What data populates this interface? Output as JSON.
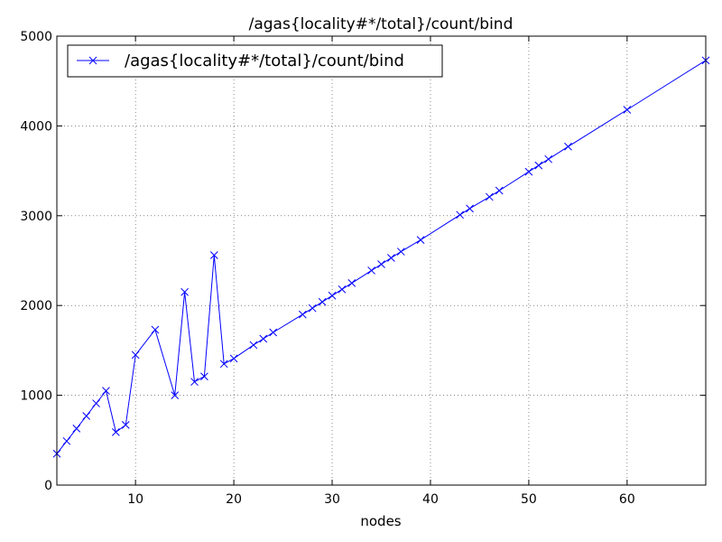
{
  "chart_data": {
    "type": "line",
    "title": "/agas{locality#*/total}/count/bind",
    "xlabel": "nodes",
    "ylabel": "",
    "xlim": [
      2,
      68
    ],
    "ylim": [
      0,
      5000
    ],
    "xticks": [
      10,
      20,
      30,
      40,
      50,
      60
    ],
    "yticks": [
      0,
      1000,
      2000,
      3000,
      4000,
      5000
    ],
    "grid": true,
    "legend_position": "top-left",
    "series": [
      {
        "name": "/agas{locality#*/total}/count/bind",
        "color": "#0000ff",
        "marker": "x",
        "points": [
          [
            2,
            350
          ],
          [
            3,
            490
          ],
          [
            4,
            630
          ],
          [
            5,
            770
          ],
          [
            6,
            910
          ],
          [
            7,
            1050
          ],
          [
            8,
            590
          ],
          [
            9,
            670
          ],
          [
            10,
            1450
          ],
          [
            12,
            1730
          ],
          [
            14,
            1000
          ],
          [
            15,
            2150
          ],
          [
            16,
            1150
          ],
          [
            17,
            1210
          ],
          [
            18,
            2560
          ],
          [
            19,
            1350
          ],
          [
            20,
            1410
          ],
          [
            22,
            1560
          ],
          [
            23,
            1630
          ],
          [
            24,
            1700
          ],
          [
            27,
            1900
          ],
          [
            28,
            1970
          ],
          [
            29,
            2040
          ],
          [
            30,
            2110
          ],
          [
            31,
            2180
          ],
          [
            32,
            2250
          ],
          [
            34,
            2390
          ],
          [
            35,
            2460
          ],
          [
            36,
            2530
          ],
          [
            37,
            2600
          ],
          [
            39,
            2730
          ],
          [
            43,
            3010
          ],
          [
            44,
            3080
          ],
          [
            46,
            3210
          ],
          [
            47,
            3280
          ],
          [
            50,
            3490
          ],
          [
            51,
            3560
          ],
          [
            52,
            3630
          ],
          [
            54,
            3770
          ],
          [
            60,
            4180
          ],
          [
            68,
            4730
          ]
        ]
      }
    ]
  }
}
